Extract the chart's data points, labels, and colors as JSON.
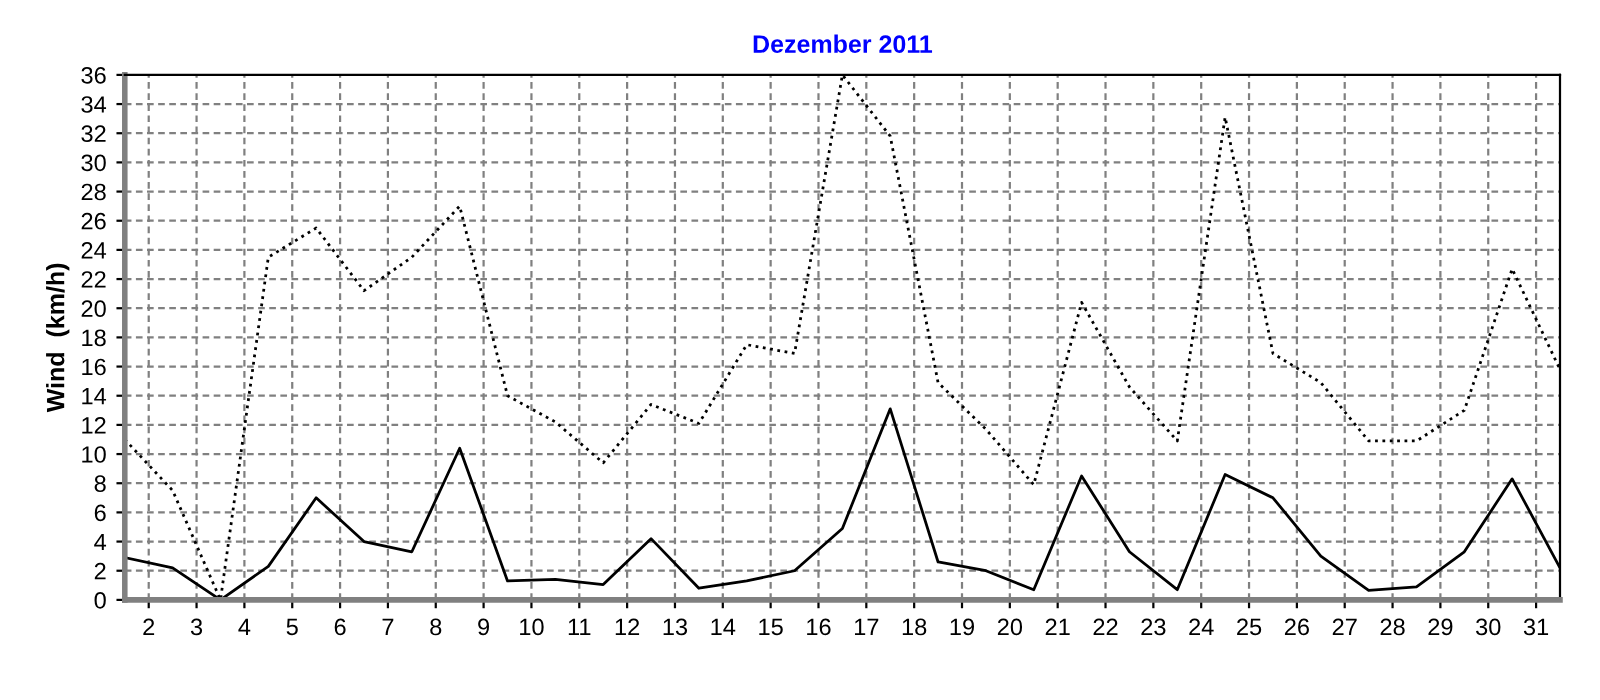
{
  "chart_data": {
    "type": "line",
    "title": "Dezember 2011",
    "ylabel": "Wind  (km/h)",
    "x": [
      1.5,
      2.5,
      3.5,
      4.5,
      5.5,
      6.5,
      7.5,
      8.5,
      9.5,
      10.5,
      11.5,
      12.5,
      13.5,
      14.5,
      15.5,
      16.5,
      17.5,
      18.5,
      19.5,
      20.5,
      21.5,
      22.5,
      23.5,
      24.5,
      25.5,
      26.5,
      27.5,
      28.5,
      29.5,
      30.5,
      31.5
    ],
    "series": [
      {
        "color": "#000000",
        "line_style": "dotted",
        "values": [
          11,
          7.5,
          0,
          23.5,
          25.5,
          21.2,
          23.5,
          27,
          14,
          12.2,
          9.4,
          13.4,
          12.1,
          17.5,
          16.9,
          36,
          31.8,
          14.9,
          11.7,
          7.9,
          20.4,
          14.6,
          10.9,
          33.1,
          16.9,
          14.9,
          10.9,
          10.9,
          13,
          22.7,
          15.8
        ]
      },
      {
        "color": "#000000",
        "line_style": "solid",
        "values": [
          2.9,
          2.2,
          0,
          2.3,
          7,
          4,
          3.3,
          10.4,
          1.3,
          1.4,
          1.05,
          4.2,
          0.8,
          1.3,
          2,
          4.9,
          13.1,
          2.6,
          2,
          0.7,
          8.5,
          3.3,
          0.7,
          8.6,
          7,
          3,
          0.65,
          0.9,
          3.3,
          8.3,
          2.2
        ]
      }
    ],
    "xlim": [
      1.5,
      31.5
    ],
    "xticks": [
      2,
      3,
      4,
      5,
      6,
      7,
      8,
      9,
      10,
      11,
      12,
      13,
      14,
      15,
      16,
      17,
      18,
      19,
      20,
      21,
      22,
      23,
      24,
      25,
      26,
      27,
      28,
      29,
      30,
      31
    ],
    "ylim": [
      0,
      36
    ],
    "yticks": [
      0,
      2,
      4,
      6,
      8,
      10,
      12,
      14,
      16,
      18,
      20,
      22,
      24,
      26,
      28,
      30,
      32,
      34,
      36
    ],
    "grid": true,
    "marker": "none"
  }
}
